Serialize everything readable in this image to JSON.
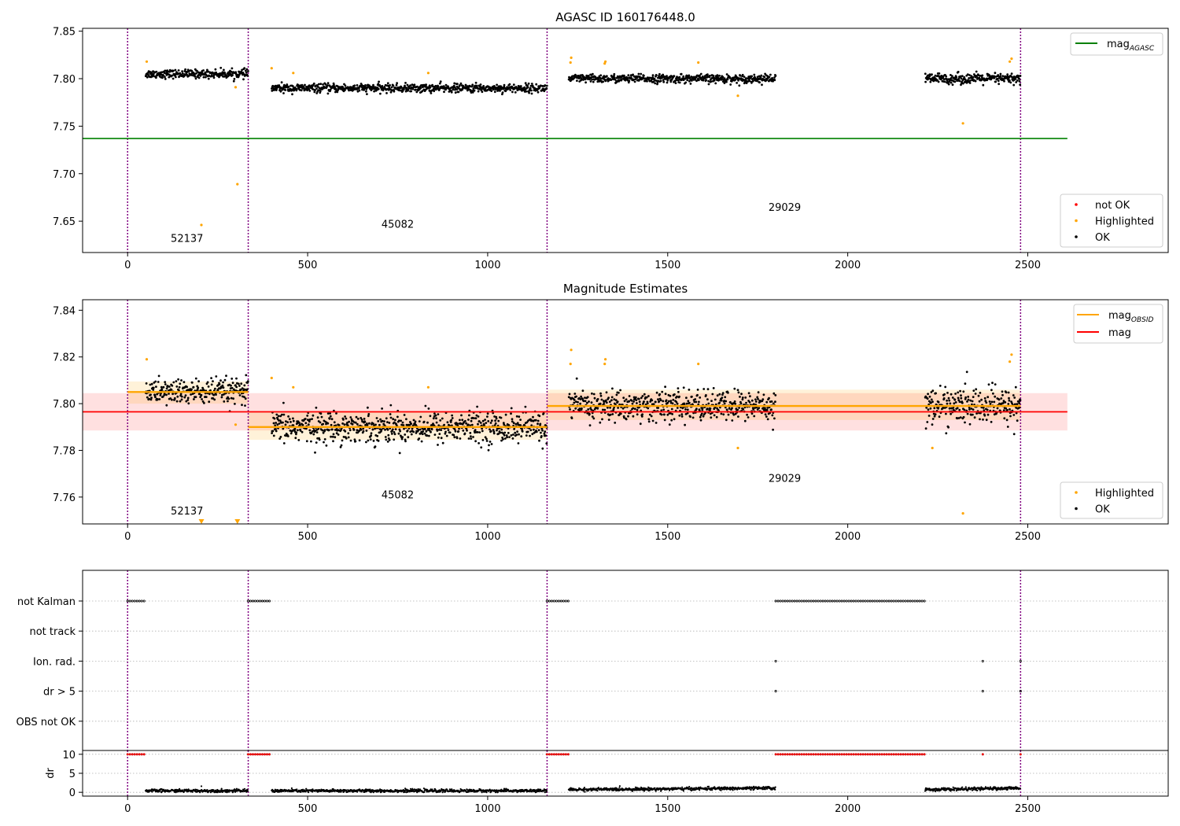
{
  "chart_data": [
    {
      "type": "scatter",
      "title": "AGASC ID 160176448.0",
      "xlim": [
        -125,
        2890
      ],
      "ylim": [
        7.617,
        7.853
      ],
      "xticks": [
        0,
        500,
        1000,
        1500,
        2000,
        2500
      ],
      "yticks": [
        7.65,
        7.7,
        7.75,
        7.8,
        7.85
      ],
      "ytick_labels": [
        "7.65",
        "7.70",
        "7.75",
        "7.80",
        "7.85"
      ],
      "vlines": [
        0,
        335,
        1165,
        2480
      ],
      "hline": {
        "name": "mag",
        "sub": "AGASC",
        "y": 7.737,
        "x": [
          -125,
          2610
        ],
        "color": "#008000"
      },
      "obsid_labels": [
        {
          "text": "52137",
          "x": 165,
          "y": 7.628
        },
        {
          "text": "45082",
          "x": 750,
          "y": 7.643
        },
        {
          "text": "29029",
          "x": 1825,
          "y": 7.661
        }
      ],
      "legend_top": [
        {
          "label": "mag",
          "sub": "AGASC",
          "color": "#008000"
        }
      ],
      "legend_bottom": [
        {
          "label": "not OK",
          "color": "#ff0000"
        },
        {
          "label": "Highlighted",
          "color": "#ffa500"
        },
        {
          "label": "OK",
          "color": "#000000"
        }
      ],
      "series": [
        {
          "name": "OK",
          "color": "#000000",
          "segments": [
            {
              "x": [
                50,
                335
              ],
              "y": 7.805,
              "spread": 0.004
            },
            {
              "x": [
                400,
                1165
              ],
              "y": 7.79,
              "spread": 0.004
            },
            {
              "x": [
                1225,
                1800
              ],
              "y": 7.8,
              "spread": 0.004
            },
            {
              "x": [
                2215,
                2480
              ],
              "y": 7.8,
              "spread": 0.005
            }
          ]
        },
        {
          "name": "Highlighted",
          "color": "#ffa500",
          "points": [
            [
              53,
              7.818
            ],
            [
              205,
              7.646
            ],
            [
              300,
              7.791
            ],
            [
              305,
              7.689
            ],
            [
              400,
              7.811
            ],
            [
              460,
              7.806
            ],
            [
              835,
              7.806
            ],
            [
              1230,
              7.817
            ],
            [
              1232,
              7.822
            ],
            [
              1325,
              7.816
            ],
            [
              1327,
              7.818
            ],
            [
              1585,
              7.817
            ],
            [
              1695,
              7.782
            ],
            [
              2320,
              7.753
            ],
            [
              2450,
              7.818
            ],
            [
              2455,
              7.821
            ]
          ]
        }
      ]
    },
    {
      "type": "scatter",
      "title": "Magnitude Estimates",
      "xlim": [
        -125,
        2890
      ],
      "ylim": [
        7.7485,
        7.8445
      ],
      "xticks": [
        0,
        500,
        1000,
        1500,
        2000,
        2500
      ],
      "yticks": [
        7.76,
        7.78,
        7.8,
        7.82,
        7.84
      ],
      "ytick_labels": [
        "7.76",
        "7.78",
        "7.80",
        "7.82",
        "7.84"
      ],
      "vlines": [
        0,
        335,
        1165,
        2480
      ],
      "mag": {
        "name": "mag",
        "y": 7.7965,
        "band": [
          7.7885,
          7.8045
        ],
        "x": [
          -125,
          2610
        ],
        "color": "#ff0000"
      },
      "mag_obsid": [
        {
          "x": [
            0,
            335
          ],
          "y": 7.805,
          "band": [
            7.8,
            7.8095
          ]
        },
        {
          "x": [
            335,
            1165
          ],
          "y": 7.79,
          "band": [
            7.7845,
            7.7965
          ]
        },
        {
          "x": [
            1165,
            2480
          ],
          "y": 7.799,
          "band": [
            7.793,
            7.806
          ]
        }
      ],
      "obsid_labels": [
        {
          "text": "52137",
          "x": 165,
          "y": 7.7525
        },
        {
          "text": "45082",
          "x": 750,
          "y": 7.7595
        },
        {
          "text": "29029",
          "x": 1825,
          "y": 7.7665
        }
      ],
      "legend_top": [
        {
          "label": "mag",
          "sub": "OBSID",
          "color": "#ffa500"
        },
        {
          "label": "mag",
          "color": "#ff0000"
        }
      ],
      "legend_bottom": [
        {
          "label": "Highlighted",
          "color": "#ffa500"
        },
        {
          "label": "OK",
          "color": "#000000"
        }
      ],
      "series": [
        {
          "name": "OK",
          "color": "#000000",
          "segments": [
            {
              "x": [
                50,
                335
              ],
              "y": 7.805,
              "spread": 0.005
            },
            {
              "x": [
                400,
                1165
              ],
              "y": 7.79,
              "spread": 0.006
            },
            {
              "x": [
                1225,
                1800
              ],
              "y": 7.799,
              "spread": 0.006
            },
            {
              "x": [
                2215,
                2480
              ],
              "y": 7.799,
              "spread": 0.007
            }
          ]
        },
        {
          "name": "Highlighted",
          "color": "#ffa500",
          "points": [
            [
              53,
              7.819
            ],
            [
              300,
              7.791
            ],
            [
              400,
              7.811
            ],
            [
              460,
              7.807
            ],
            [
              835,
              7.807
            ],
            [
              1230,
              7.817
            ],
            [
              1232,
              7.823
            ],
            [
              1325,
              7.817
            ],
            [
              1327,
              7.819
            ],
            [
              1585,
              7.817
            ],
            [
              1695,
              7.781
            ],
            [
              2235,
              7.781
            ],
            [
              2320,
              7.753
            ],
            [
              2450,
              7.818
            ],
            [
              2455,
              7.821
            ]
          ]
        },
        {
          "name": "below range",
          "color": "#ffa500",
          "marker": "triangle-down",
          "points": [
            [
              205,
              7.7495
            ],
            [
              305,
              7.7495
            ]
          ]
        }
      ]
    },
    {
      "type": "scatter",
      "xlim": [
        -125,
        2890
      ],
      "xticks": [
        0,
        500,
        1000,
        1500,
        2000,
        2500
      ],
      "vlines": [
        0,
        335,
        1165,
        2480
      ],
      "flag_rows": [
        "not Kalman",
        "not track",
        "Ion. rad.",
        "dr > 5",
        "OBS not OK"
      ],
      "flag_points": {
        "not Kalman": [
          [
            0,
            50
          ],
          [
            335,
            400
          ],
          [
            1165,
            1225
          ],
          [
            1800,
            2215
          ]
        ],
        "Ion. rad.": [
          [
            1800,
            1805
          ],
          [
            2375,
            2377
          ],
          [
            2480,
            2482
          ]
        ],
        "dr > 5": [
          [
            1800,
            1805
          ],
          [
            2375,
            2377
          ],
          [
            2480,
            2482
          ]
        ]
      },
      "dr_ylabel": "dr",
      "dr_yticks": [
        0,
        5,
        10
      ],
      "dr_ytick_labels": [
        "0",
        "5",
        "10"
      ],
      "dr_ylim": [
        -1,
        11
      ],
      "dr_high": {
        "color": "#ff0000",
        "y": 10,
        "ranges": [
          [
            0,
            50
          ],
          [
            335,
            400
          ],
          [
            1165,
            1225
          ],
          [
            1800,
            2215
          ],
          [
            2375,
            2377
          ],
          [
            2480,
            2482
          ]
        ]
      },
      "dr_series": [
        {
          "x": [
            50,
            335
          ],
          "y": 0.4
        },
        {
          "x": [
            400,
            1165
          ],
          "y": 0.4
        },
        {
          "x": [
            1225,
            1800
          ],
          "y": 0.7
        },
        {
          "x": [
            2215,
            2480
          ],
          "y": 0.7
        }
      ],
      "dr_extra": [
        [
          205,
          1.6
        ]
      ]
    }
  ]
}
